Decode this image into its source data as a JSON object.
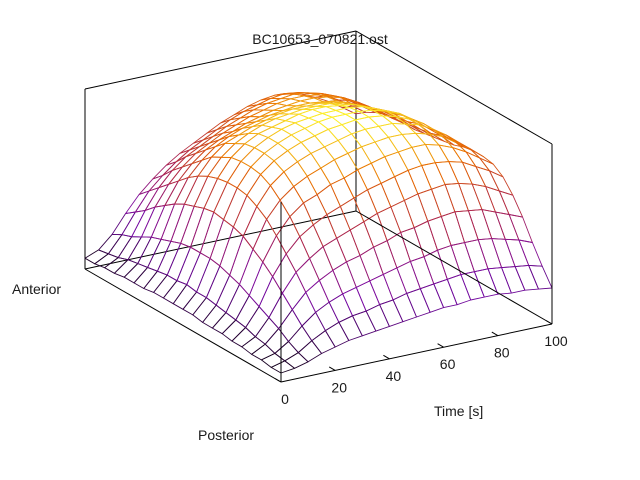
{
  "chart_data": {
    "type": "surface",
    "title": "BC10653_070821.ost",
    "xlabel": "Time [s]",
    "y_end_labels": {
      "front": "Posterior",
      "back": "Anterior"
    },
    "x_ticks": [
      "0",
      "20",
      "40",
      "60",
      "80",
      "100"
    ],
    "xlim": [
      0,
      100
    ],
    "ylim": [
      0,
      1
    ],
    "zlim": [
      0,
      1
    ],
    "grid": false,
    "colormap": [
      "#000000",
      "#7a0ca8",
      "#b0284a",
      "#e86a00",
      "#ffff30"
    ],
    "x": [
      0,
      5,
      10,
      15,
      20,
      25,
      30,
      35,
      40,
      45,
      50,
      55,
      60,
      65,
      70,
      75,
      80,
      85,
      90,
      95,
      100
    ],
    "y": [
      0,
      0.05,
      0.1,
      0.15,
      0.2,
      0.25,
      0.3,
      0.35,
      0.4,
      0.45,
      0.5,
      0.55,
      0.6,
      0.65,
      0.7,
      0.75,
      0.8,
      0.85,
      0.9,
      0.95,
      1
    ],
    "z": [
      [
        0.05,
        0.06,
        0.08,
        0.11,
        0.13,
        0.15,
        0.16,
        0.17,
        0.18,
        0.19,
        0.2,
        0.21,
        0.22,
        0.22,
        0.23,
        0.23,
        0.23,
        0.22,
        0.22,
        0.21,
        0.2
      ],
      [
        0.05,
        0.07,
        0.1,
        0.15,
        0.19,
        0.22,
        0.24,
        0.25,
        0.27,
        0.28,
        0.3,
        0.31,
        0.32,
        0.33,
        0.34,
        0.34,
        0.34,
        0.33,
        0.32,
        0.31,
        0.29
      ],
      [
        0.06,
        0.08,
        0.13,
        0.2,
        0.26,
        0.3,
        0.33,
        0.35,
        0.37,
        0.39,
        0.41,
        0.43,
        0.44,
        0.46,
        0.47,
        0.47,
        0.47,
        0.46,
        0.44,
        0.42,
        0.39
      ],
      [
        0.06,
        0.1,
        0.17,
        0.26,
        0.34,
        0.39,
        0.43,
        0.46,
        0.48,
        0.51,
        0.53,
        0.56,
        0.57,
        0.59,
        0.6,
        0.61,
        0.6,
        0.59,
        0.56,
        0.53,
        0.5
      ],
      [
        0.07,
        0.11,
        0.2,
        0.32,
        0.42,
        0.48,
        0.53,
        0.56,
        0.59,
        0.62,
        0.65,
        0.67,
        0.69,
        0.71,
        0.72,
        0.73,
        0.72,
        0.7,
        0.67,
        0.63,
        0.59
      ],
      [
        0.07,
        0.13,
        0.23,
        0.38,
        0.49,
        0.57,
        0.62,
        0.66,
        0.69,
        0.72,
        0.75,
        0.77,
        0.79,
        0.81,
        0.82,
        0.82,
        0.81,
        0.79,
        0.75,
        0.71,
        0.66
      ],
      [
        0.08,
        0.14,
        0.26,
        0.43,
        0.56,
        0.65,
        0.71,
        0.74,
        0.78,
        0.8,
        0.83,
        0.85,
        0.87,
        0.88,
        0.89,
        0.89,
        0.87,
        0.84,
        0.8,
        0.75,
        0.7
      ],
      [
        0.08,
        0.15,
        0.29,
        0.47,
        0.62,
        0.71,
        0.77,
        0.81,
        0.84,
        0.87,
        0.89,
        0.91,
        0.92,
        0.93,
        0.93,
        0.92,
        0.9,
        0.87,
        0.82,
        0.77,
        0.71
      ],
      [
        0.08,
        0.16,
        0.31,
        0.51,
        0.66,
        0.76,
        0.82,
        0.86,
        0.89,
        0.91,
        0.93,
        0.95,
        0.96,
        0.96,
        0.96,
        0.94,
        0.92,
        0.88,
        0.83,
        0.77,
        0.71
      ],
      [
        0.09,
        0.17,
        0.33,
        0.53,
        0.69,
        0.79,
        0.85,
        0.89,
        0.92,
        0.94,
        0.96,
        0.97,
        0.98,
        0.98,
        0.97,
        0.95,
        0.92,
        0.88,
        0.82,
        0.76,
        0.7
      ],
      [
        0.09,
        0.17,
        0.34,
        0.54,
        0.7,
        0.8,
        0.86,
        0.9,
        0.93,
        0.95,
        0.97,
        0.98,
        0.98,
        0.98,
        0.97,
        0.95,
        0.92,
        0.87,
        0.81,
        0.75,
        0.68
      ],
      [
        0.09,
        0.18,
        0.34,
        0.55,
        0.7,
        0.8,
        0.86,
        0.9,
        0.93,
        0.95,
        0.96,
        0.97,
        0.97,
        0.97,
        0.96,
        0.93,
        0.9,
        0.86,
        0.8,
        0.73,
        0.67
      ],
      [
        0.09,
        0.17,
        0.34,
        0.54,
        0.69,
        0.79,
        0.85,
        0.89,
        0.91,
        0.93,
        0.95,
        0.96,
        0.96,
        0.95,
        0.94,
        0.91,
        0.88,
        0.84,
        0.78,
        0.72,
        0.66
      ],
      [
        0.09,
        0.17,
        0.33,
        0.52,
        0.67,
        0.76,
        0.82,
        0.86,
        0.89,
        0.91,
        0.92,
        0.93,
        0.93,
        0.93,
        0.91,
        0.89,
        0.86,
        0.82,
        0.77,
        0.71,
        0.65
      ],
      [
        0.08,
        0.16,
        0.31,
        0.5,
        0.64,
        0.73,
        0.79,
        0.82,
        0.85,
        0.87,
        0.89,
        0.9,
        0.9,
        0.9,
        0.89,
        0.87,
        0.84,
        0.8,
        0.75,
        0.7,
        0.64
      ],
      [
        0.08,
        0.15,
        0.29,
        0.47,
        0.6,
        0.68,
        0.74,
        0.78,
        0.81,
        0.83,
        0.85,
        0.86,
        0.87,
        0.87,
        0.86,
        0.85,
        0.82,
        0.79,
        0.74,
        0.69,
        0.64
      ],
      [
        0.08,
        0.14,
        0.27,
        0.43,
        0.55,
        0.63,
        0.69,
        0.73,
        0.76,
        0.79,
        0.81,
        0.83,
        0.84,
        0.85,
        0.85,
        0.84,
        0.82,
        0.78,
        0.74,
        0.69,
        0.64
      ],
      [
        0.07,
        0.13,
        0.24,
        0.39,
        0.5,
        0.58,
        0.64,
        0.68,
        0.72,
        0.75,
        0.78,
        0.8,
        0.82,
        0.83,
        0.83,
        0.82,
        0.8,
        0.77,
        0.73,
        0.68,
        0.63
      ],
      [
        0.07,
        0.11,
        0.21,
        0.34,
        0.45,
        0.53,
        0.59,
        0.63,
        0.67,
        0.71,
        0.74,
        0.77,
        0.79,
        0.8,
        0.81,
        0.8,
        0.78,
        0.75,
        0.71,
        0.66,
        0.61
      ],
      [
        0.06,
        0.1,
        0.19,
        0.3,
        0.4,
        0.47,
        0.53,
        0.58,
        0.62,
        0.66,
        0.7,
        0.73,
        0.75,
        0.77,
        0.78,
        0.77,
        0.75,
        0.72,
        0.68,
        0.63,
        0.58
      ],
      [
        0.06,
        0.09,
        0.16,
        0.26,
        0.35,
        0.42,
        0.48,
        0.53,
        0.57,
        0.61,
        0.65,
        0.68,
        0.71,
        0.73,
        0.74,
        0.73,
        0.71,
        0.68,
        0.64,
        0.59,
        0.54
      ]
    ]
  }
}
